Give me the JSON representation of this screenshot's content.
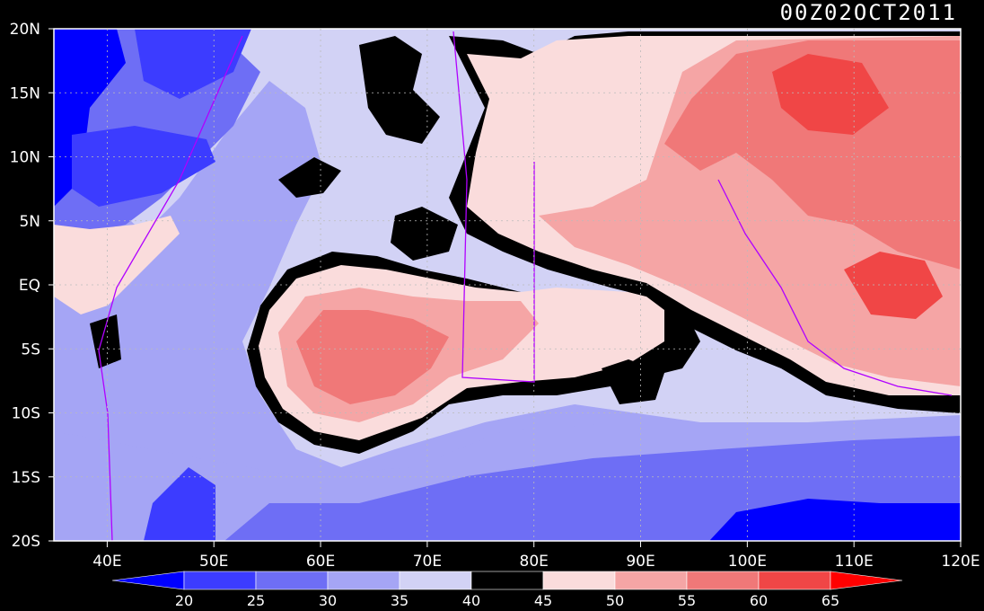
{
  "title": "00Z02OCT2011",
  "map": {
    "lon_range": [
      35,
      120
    ],
    "lat_range": [
      -20,
      20
    ],
    "lat_labels": [
      "20N",
      "15N",
      "10N",
      "5N",
      "EQ",
      "5S",
      "10S",
      "15S",
      "20S"
    ],
    "lon_labels": [
      "40E",
      "50E",
      "60E",
      "70E",
      "80E",
      "90E",
      "100E",
      "110E",
      "120E"
    ]
  },
  "colorbar": {
    "levels": [
      "20",
      "25",
      "30",
      "35",
      "40",
      "45",
      "50",
      "55",
      "60",
      "65"
    ],
    "colors": [
      "#0000ff",
      "#3c3cff",
      "#6e6ef5",
      "#a5a5f5",
      "#d2d2f5",
      "#000000",
      "#fadcdc",
      "#f5a5a5",
      "#f07878",
      "#f04646",
      "#ff0000"
    ],
    "under_color": "#0000ff",
    "over_color": "#ff0000"
  }
}
